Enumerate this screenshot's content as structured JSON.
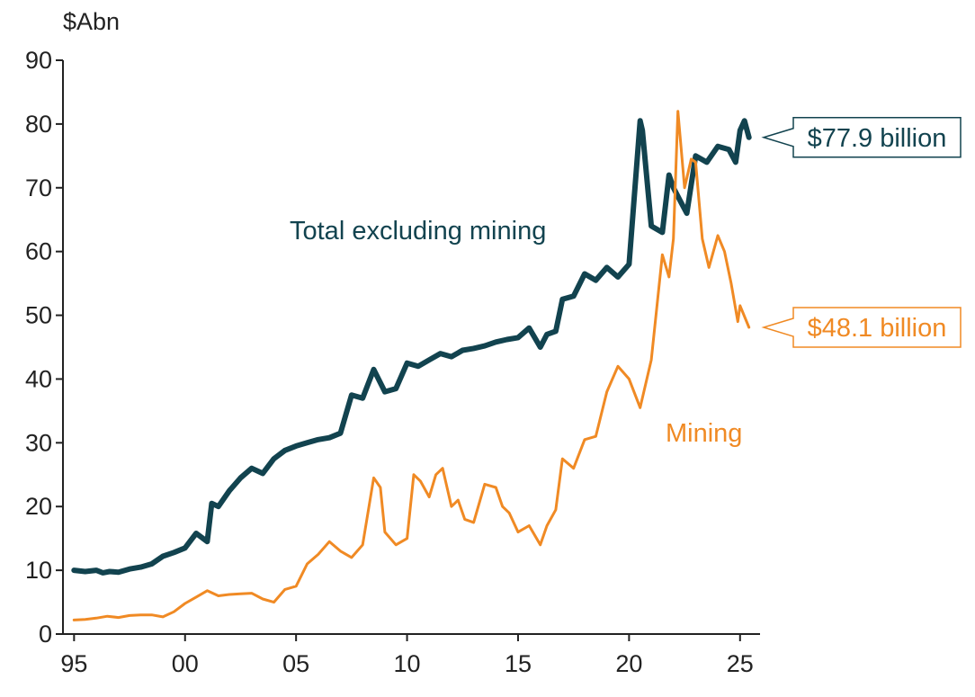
{
  "chart_data": {
    "type": "line",
    "unit_label": "$Abn",
    "xlabel": "",
    "ylabel": "$Abn",
    "ylim": [
      0,
      90
    ],
    "xlim": [
      1994.5,
      2025.9
    ],
    "yticks": [
      0,
      10,
      20,
      30,
      40,
      50,
      60,
      70,
      80,
      90
    ],
    "xticks": [
      1995,
      2000,
      2005,
      2010,
      2015,
      2020,
      2025
    ],
    "xtick_labels": [
      "95",
      "00",
      "05",
      "10",
      "15",
      "20",
      "25"
    ],
    "grid": false,
    "series": [
      {
        "name": "Total excluding mining",
        "color": "#12434f",
        "callout": "$77.9 billion",
        "x": [
          1995.0,
          1995.5,
          1996.0,
          1996.3,
          1996.6,
          1997.0,
          1997.5,
          1998.0,
          1998.5,
          1999.0,
          1999.5,
          2000.0,
          2000.5,
          2001.0,
          2001.2,
          2001.5,
          2002.0,
          2002.5,
          2003.0,
          2003.5,
          2004.0,
          2004.5,
          2005.0,
          2005.5,
          2006.0,
          2006.5,
          2007.0,
          2007.5,
          2008.0,
          2008.5,
          2009.0,
          2009.5,
          2010.0,
          2010.5,
          2011.0,
          2011.5,
          2012.0,
          2012.5,
          2013.0,
          2013.5,
          2014.0,
          2014.5,
          2015.0,
          2015.5,
          2016.0,
          2016.3,
          2016.7,
          2017.0,
          2017.5,
          2018.0,
          2018.5,
          2019.0,
          2019.5,
          2020.0,
          2020.5,
          2020.6,
          2021.0,
          2021.5,
          2021.8,
          2022.0,
          2022.3,
          2022.6,
          2023.0,
          2023.5,
          2024.0,
          2024.5,
          2024.8,
          2025.0,
          2025.2,
          2025.4
        ],
        "values": [
          10.0,
          9.8,
          10.0,
          9.6,
          9.8,
          9.7,
          10.2,
          10.5,
          11.0,
          12.2,
          12.8,
          13.5,
          15.8,
          14.5,
          20.5,
          20.0,
          22.5,
          24.5,
          26.0,
          25.2,
          27.5,
          28.8,
          29.5,
          30.0,
          30.5,
          30.8,
          31.5,
          37.5,
          37.0,
          41.5,
          38.0,
          38.5,
          42.5,
          42.0,
          43.0,
          44.0,
          43.5,
          44.5,
          44.8,
          45.2,
          45.8,
          46.2,
          46.5,
          48.0,
          45.0,
          47.0,
          47.5,
          52.5,
          53.0,
          56.5,
          55.5,
          57.5,
          56.0,
          58.0,
          80.5,
          79.0,
          64.0,
          63.0,
          72.0,
          70.0,
          68.0,
          66.0,
          75.0,
          74.0,
          76.5,
          76.0,
          74.0,
          79.0,
          80.5,
          77.9
        ]
      },
      {
        "name": "Mining",
        "color": "#f08a24",
        "callout": "$48.1 billion",
        "x": [
          1995.0,
          1995.5,
          1996.0,
          1996.5,
          1997.0,
          1997.5,
          1998.0,
          1998.5,
          1999.0,
          1999.5,
          2000.0,
          2000.5,
          2001.0,
          2001.5,
          2002.0,
          2002.5,
          2003.0,
          2003.5,
          2004.0,
          2004.5,
          2005.0,
          2005.5,
          2006.0,
          2006.5,
          2007.0,
          2007.5,
          2008.0,
          2008.5,
          2008.8,
          2009.0,
          2009.5,
          2010.0,
          2010.3,
          2010.6,
          2011.0,
          2011.3,
          2011.6,
          2012.0,
          2012.3,
          2012.6,
          2013.0,
          2013.5,
          2014.0,
          2014.3,
          2014.6,
          2015.0,
          2015.5,
          2016.0,
          2016.3,
          2016.7,
          2017.0,
          2017.5,
          2018.0,
          2018.5,
          2019.0,
          2019.5,
          2020.0,
          2020.5,
          2021.0,
          2021.5,
          2021.8,
          2022.0,
          2022.2,
          2022.5,
          2022.8,
          2023.0,
          2023.3,
          2023.6,
          2024.0,
          2024.3,
          2024.6,
          2024.9,
          2025.0,
          2025.4
        ],
        "values": [
          2.2,
          2.3,
          2.5,
          2.8,
          2.6,
          2.9,
          3.0,
          3.0,
          2.7,
          3.5,
          4.8,
          5.8,
          6.8,
          6.0,
          6.2,
          6.3,
          6.4,
          5.5,
          5.0,
          7.0,
          7.5,
          11.0,
          12.5,
          14.5,
          13.0,
          12.0,
          14.0,
          24.5,
          23.0,
          16.0,
          14.0,
          15.0,
          25.0,
          24.0,
          21.5,
          25.0,
          26.0,
          20.0,
          21.0,
          18.0,
          17.5,
          23.5,
          23.0,
          20.0,
          19.0,
          16.0,
          17.0,
          14.0,
          17.0,
          19.5,
          27.5,
          26.0,
          30.5,
          31.0,
          38.0,
          42.0,
          40.0,
          35.5,
          43.0,
          59.5,
          56.0,
          62.0,
          82.0,
          70.0,
          74.5,
          74.0,
          62.0,
          57.5,
          62.5,
          60.0,
          55.0,
          49.0,
          51.5,
          48.1
        ]
      }
    ],
    "annotations": [
      {
        "text": "Total excluding mining",
        "series": "Total excluding mining"
      },
      {
        "text": "Mining",
        "series": "Mining"
      }
    ]
  }
}
